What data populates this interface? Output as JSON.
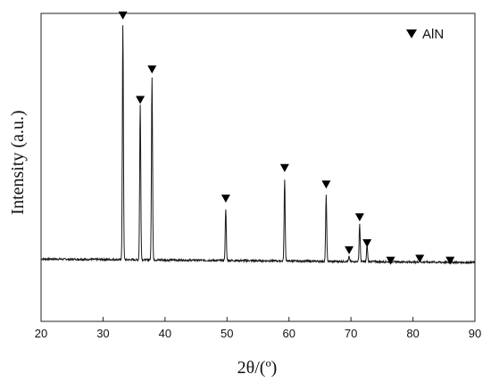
{
  "chart_data": {
    "type": "line",
    "xlabel": "2θ/(º)",
    "ylabel": "Intensity  (a.u.)",
    "xlim": [
      20,
      90
    ],
    "x_ticks": [
      20,
      30,
      40,
      50,
      60,
      70,
      80,
      90
    ],
    "y_ticks_labeled": false,
    "grid": false,
    "legend": {
      "placement": "top-right",
      "entries": [
        {
          "marker": "triangle-down",
          "label": "AlN"
        }
      ]
    },
    "series": [
      {
        "name": "AlN",
        "baseline": 3,
        "peaks": [
          {
            "x": 33.2,
            "y": 100
          },
          {
            "x": 36.0,
            "y": 66
          },
          {
            "x": 37.9,
            "y": 78
          },
          {
            "x": 49.8,
            "y": 22
          },
          {
            "x": 59.3,
            "y": 35
          },
          {
            "x": 66.0,
            "y": 28
          },
          {
            "x": 69.7,
            "y": 2
          },
          {
            "x": 71.4,
            "y": 16
          },
          {
            "x": 72.6,
            "y": 7
          },
          {
            "x": 76.4,
            "y": 1
          },
          {
            "x": 81.1,
            "y": 1
          },
          {
            "x": 86.0,
            "y": 1
          }
        ]
      }
    ],
    "markers": [
      {
        "x": 33.2,
        "y": 105
      },
      {
        "x": 36.0,
        "y": 69
      },
      {
        "x": 37.9,
        "y": 82
      },
      {
        "x": 49.8,
        "y": 27
      },
      {
        "x": 59.3,
        "y": 40
      },
      {
        "x": 66.0,
        "y": 33
      },
      {
        "x": 69.7,
        "y": 5
      },
      {
        "x": 71.4,
        "y": 19
      },
      {
        "x": 72.6,
        "y": 8
      },
      {
        "x": 76.4,
        "y": 0.5
      },
      {
        "x": 81.1,
        "y": 1.4
      },
      {
        "x": 86.0,
        "y": 0.5
      }
    ]
  },
  "colors": {
    "line": "#1a1a1a",
    "marker": "#000000",
    "axis": "#222222"
  }
}
